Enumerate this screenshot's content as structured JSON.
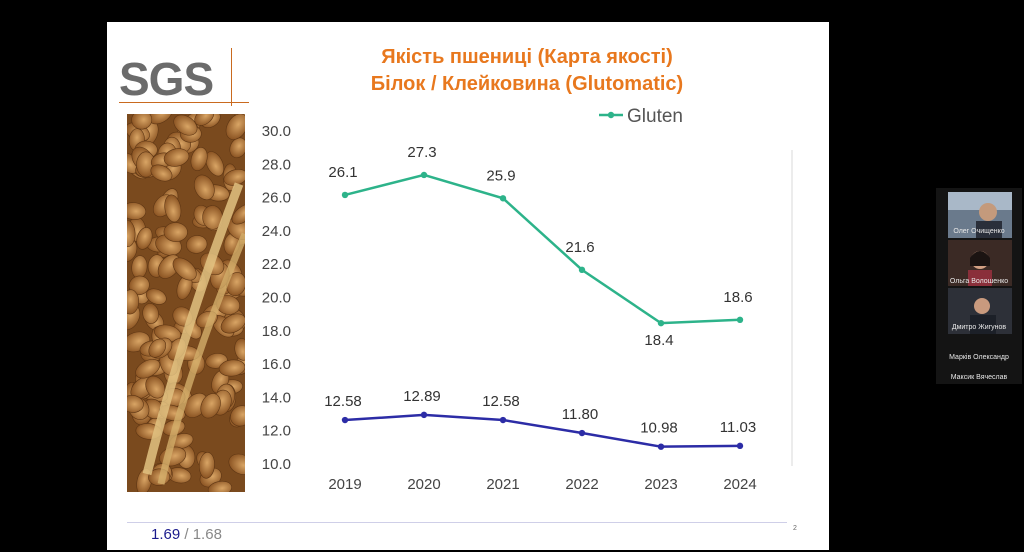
{
  "slide": {
    "logo_text": "SGS",
    "title_line1": "Якість пшениці (Карта якості)",
    "title_line2": "Білок / Клейковина (Glutomatic)",
    "footer_value_a": "1.69",
    "footer_separator": "/",
    "footer_value_b": "1.68",
    "page_number": "2"
  },
  "colors": {
    "title": "#e8781e",
    "gluten_series": "#2db38a",
    "protein_series": "#2c2ca6"
  },
  "chart_data": {
    "type": "line",
    "x": [
      "2019",
      "2020",
      "2021",
      "2022",
      "2023",
      "2024"
    ],
    "series": [
      {
        "name": "Gluten",
        "values": [
          26.1,
          27.3,
          25.9,
          21.6,
          18.4,
          18.6
        ],
        "labels": [
          "26.1",
          "27.3",
          "25.9",
          "21.6",
          "18.4",
          "18.6"
        ]
      },
      {
        "name": "",
        "values": [
          12.58,
          12.89,
          12.58,
          11.8,
          10.98,
          11.03
        ],
        "labels": [
          "12.58",
          "12.89",
          "12.58",
          "11.80",
          "10.98",
          "11.03"
        ]
      }
    ],
    "ylim": [
      10,
      30
    ],
    "yticks": [
      "10.0",
      "12.0",
      "14.0",
      "16.0",
      "18.0",
      "20.0",
      "22.0",
      "24.0",
      "26.0",
      "28.0",
      "30.0"
    ],
    "grid": false,
    "legend": "top-right"
  },
  "participants": [
    {
      "name": "Олег Очищенко",
      "icon": "person-avatar-icon"
    },
    {
      "name": "Ольга Волошенко",
      "icon": "person-avatar-icon"
    },
    {
      "name": "Дмитро Жигунов",
      "icon": "person-avatar-icon"
    },
    {
      "name": "Марків Олександр",
      "icon": "person-avatar-icon"
    },
    {
      "name": "Максик Вячеслав",
      "icon": "person-avatar-icon"
    }
  ]
}
